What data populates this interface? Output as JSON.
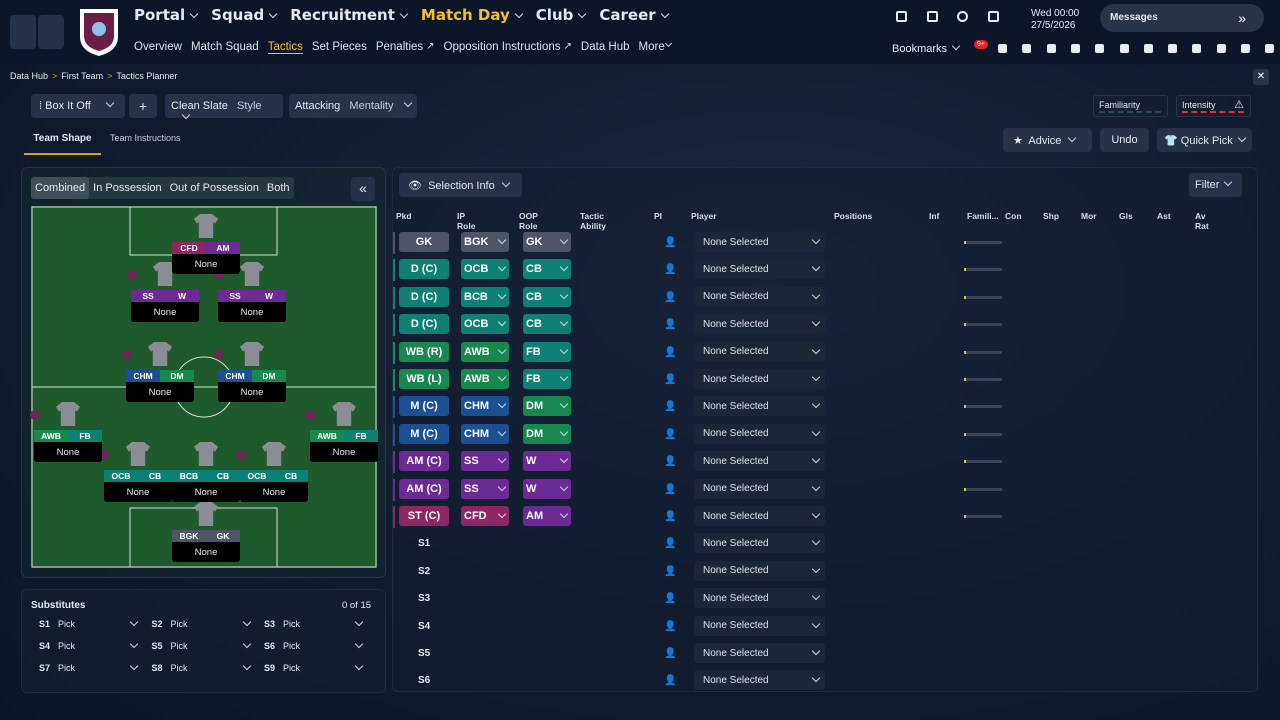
{
  "nav": {
    "main": [
      "Portal",
      "Squad",
      "Recruitment",
      "Match Day",
      "Club",
      "Career"
    ],
    "sub": [
      "Overview",
      "Match Squad",
      "Tactics",
      "Set Pieces",
      "Penalties",
      "Opposition Instructions",
      "Data Hub",
      "More"
    ],
    "date": "Wed 00:00",
    "day": "27/5/2026",
    "messages": "Messages",
    "bookmarks": "Bookmarks",
    "badge": "9+"
  },
  "breadcrumb": [
    "Data Hub",
    "First Team",
    "Tactics Planner"
  ],
  "toolbar": {
    "tactic": "Box It Off",
    "add": "+",
    "style_value": "Clean Slate",
    "style_label": "Style",
    "mentality_value": "Attacking",
    "mentality_label": "Mentality",
    "familiarity": "Familiarity",
    "intensity": "Intensity"
  },
  "tabs": [
    "Team Shape",
    "Team Instructions"
  ],
  "actions": [
    "Advice",
    "Undo",
    "Quick Pick"
  ],
  "pitch": {
    "views": [
      "Combined",
      "In Possession",
      "Out of Possession",
      "Both"
    ],
    "empty": "None"
  },
  "selection": {
    "info": "Selection Info",
    "filter": "Filter",
    "columns": [
      "Pkd",
      "IP Role",
      "OOP Role",
      "Tactic Ability",
      "PI",
      "Player",
      "Positions",
      "Inf",
      "Famili...",
      "Con",
      "Shp",
      "Mor",
      "Gls",
      "Ast",
      "Av Rat"
    ],
    "rows": [
      {
        "pos": "GK",
        "pos_color": "#4f5468",
        "ip": "BGK",
        "ip_color": "#4f5468",
        "oop": "GK",
        "oop_color": "#4f5468",
        "player": "None Selected"
      },
      {
        "pos": "D (C)",
        "pos_color": "#0e8076",
        "ip": "OCB",
        "ip_color": "#0e8076",
        "oop": "CB",
        "oop_color": "#0e8076",
        "player": "None Selected"
      },
      {
        "pos": "D (C)",
        "pos_color": "#0e8076",
        "ip": "BCB",
        "ip_color": "#0e8076",
        "oop": "CB",
        "oop_color": "#0e8076",
        "player": "None Selected"
      },
      {
        "pos": "D (C)",
        "pos_color": "#0e8076",
        "ip": "OCB",
        "ip_color": "#0e8076",
        "oop": "CB",
        "oop_color": "#0e8076",
        "player": "None Selected"
      },
      {
        "pos": "WB (R)",
        "pos_color": "#17894f",
        "ip": "AWB",
        "ip_color": "#17894f",
        "oop": "FB",
        "oop_color": "#0e8076",
        "player": "None Selected"
      },
      {
        "pos": "WB (L)",
        "pos_color": "#17894f",
        "ip": "AWB",
        "ip_color": "#17894f",
        "oop": "FB",
        "oop_color": "#0e8076",
        "player": "None Selected"
      },
      {
        "pos": "M (C)",
        "pos_color": "#1d4f93",
        "ip": "CHM",
        "ip_color": "#1d4f93",
        "oop": "DM",
        "oop_color": "#17894f",
        "player": "None Selected"
      },
      {
        "pos": "M (C)",
        "pos_color": "#1d4f93",
        "ip": "CHM",
        "ip_color": "#1d4f93",
        "oop": "DM",
        "oop_color": "#17894f",
        "player": "None Selected"
      },
      {
        "pos": "AM (C)",
        "pos_color": "#6d2a95",
        "ip": "SS",
        "ip_color": "#6d2a95",
        "oop": "W",
        "oop_color": "#6d2a95",
        "player": "None Selected"
      },
      {
        "pos": "AM (C)",
        "pos_color": "#6d2a95",
        "ip": "SS",
        "ip_color": "#6d2a95",
        "oop": "W",
        "oop_color": "#6d2a95",
        "player": "None Selected"
      },
      {
        "pos": "ST (C)",
        "pos_color": "#8e2565",
        "ip": "CFD",
        "ip_color": "#8e2565",
        "oop": "AM",
        "oop_color": "#6d2a95",
        "player": "None Selected"
      }
    ],
    "subs": [
      {
        "slot": "S1",
        "player": "None Selected"
      },
      {
        "slot": "S2",
        "player": "None Selected"
      },
      {
        "slot": "S3",
        "player": "None Selected"
      },
      {
        "slot": "S4",
        "player": "None Selected"
      },
      {
        "slot": "S5",
        "player": "None Selected"
      },
      {
        "slot": "S6",
        "player": "None Selected"
      }
    ]
  },
  "substitutes": {
    "title": "Substitutes",
    "count": "0 of 15",
    "slots": [
      {
        "slot": "S1",
        "pick": "Pick"
      },
      {
        "slot": "S2",
        "pick": "Pick"
      },
      {
        "slot": "S3",
        "pick": "Pick"
      },
      {
        "slot": "S4",
        "pick": "Pick"
      },
      {
        "slot": "S5",
        "pick": "Pick"
      },
      {
        "slot": "S6",
        "pick": "Pick"
      },
      {
        "slot": "S7",
        "pick": "Pick"
      },
      {
        "slot": "S8",
        "pick": "Pick"
      },
      {
        "slot": "S9",
        "pick": "Pick"
      }
    ]
  }
}
